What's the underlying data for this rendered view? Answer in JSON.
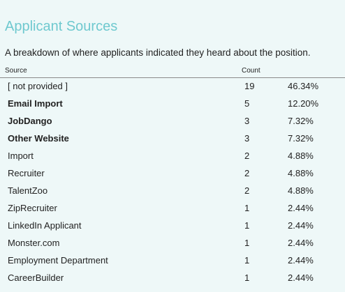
{
  "page": {
    "title": "Applicant Sources",
    "subtitle": "A breakdown of where applicants indicated they heard about the position."
  },
  "table": {
    "headers": {
      "source": "Source",
      "count": "Count"
    },
    "rows": [
      {
        "source": "[ not provided ]",
        "count": "19",
        "percent": "46.34%",
        "bold": false
      },
      {
        "source": "Email Import",
        "count": "5",
        "percent": "12.20%",
        "bold": true
      },
      {
        "source": "JobDango",
        "count": "3",
        "percent": "7.32%",
        "bold": true
      },
      {
        "source": "Other Website",
        "count": "3",
        "percent": "7.32%",
        "bold": true
      },
      {
        "source": "Import",
        "count": "2",
        "percent": "4.88%",
        "bold": false
      },
      {
        "source": "Recruiter",
        "count": "2",
        "percent": "4.88%",
        "bold": false
      },
      {
        "source": "TalentZoo",
        "count": "2",
        "percent": "4.88%",
        "bold": false
      },
      {
        "source": "ZipRecruiter",
        "count": "1",
        "percent": "2.44%",
        "bold": false
      },
      {
        "source": "LinkedIn Applicant",
        "count": "1",
        "percent": "2.44%",
        "bold": false
      },
      {
        "source": "Monster.com",
        "count": "1",
        "percent": "2.44%",
        "bold": false
      },
      {
        "source": "Employment Department",
        "count": "1",
        "percent": "2.44%",
        "bold": false
      },
      {
        "source": "CareerBuilder",
        "count": "1",
        "percent": "2.44%",
        "bold": false
      }
    ]
  },
  "colors": {
    "title": "#6fc9cf",
    "background": "#eef8f8",
    "text": "#222222",
    "rule": "#8a8a8a"
  }
}
